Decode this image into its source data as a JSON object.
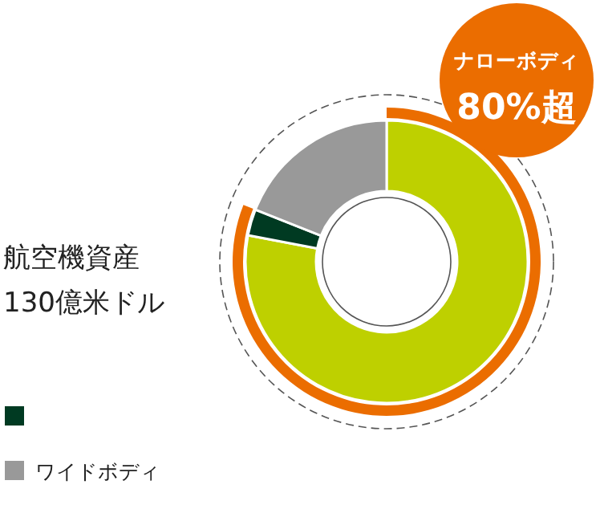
{
  "chart_data": {
    "type": "donut",
    "categories": [
      null,
      null,
      "ワイドボディ"
    ],
    "values": [
      78,
      3,
      19
    ],
    "colors": [
      "#bed000",
      "#003a22",
      "#999999"
    ],
    "legend": "bottom left",
    "annotations": [
      "航空機資産",
      "130億米ドル",
      "ナローボディ",
      "80%超"
    ]
  }
}
